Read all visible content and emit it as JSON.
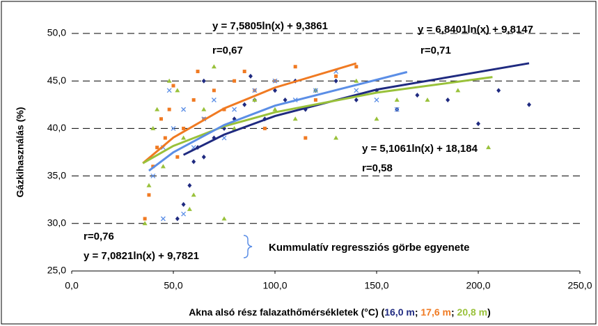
{
  "chart_data": {
    "type": "scatter",
    "ylabel": "Gázkihasználás (%)",
    "xlabel_parts": [
      "Akna alsó rész falazathőmérsékletek (°C) (",
      "; ",
      "; ",
      ")"
    ],
    "xlim": [
      0,
      250
    ],
    "xticks": [
      {
        "value": 0,
        "label": "0,0"
      },
      {
        "value": 50,
        "label": "50,0"
      },
      {
        "value": 100,
        "label": "100,0"
      },
      {
        "value": 150,
        "label": "150,0"
      },
      {
        "value": 200,
        "label": "200,0"
      },
      {
        "value": 250,
        "label": "250,0"
      }
    ],
    "ylim": [
      25,
      50
    ],
    "yticks": [
      {
        "value": 25,
        "label": "25,0"
      },
      {
        "value": 30,
        "label": "30,0"
      },
      {
        "value": 35,
        "label": "35,0"
      },
      {
        "value": 40,
        "label": "40,0"
      },
      {
        "value": 45,
        "label": "45,0"
      },
      {
        "value": 50,
        "label": "50,0"
      }
    ],
    "grid": true,
    "series": [
      {
        "name": "16,0 m",
        "color": "#1f2a80",
        "marker": "diamond",
        "x": [
          52,
          55,
          58,
          60,
          62,
          65,
          70,
          75,
          80,
          85,
          90,
          95,
          100,
          105,
          110,
          115,
          120,
          130,
          140,
          150,
          160,
          170,
          185,
          200,
          210,
          225,
          65,
          88
        ],
        "values": [
          30.5,
          32,
          34,
          36.5,
          38,
          37,
          39,
          40,
          41,
          42.5,
          43,
          41,
          44,
          43,
          45,
          42,
          44,
          45,
          43,
          44,
          42,
          43.5,
          43,
          40.5,
          44,
          42.5,
          45,
          45.5
        ]
      },
      {
        "name": "17,6 m",
        "color": "#f07a22",
        "marker": "square",
        "x": [
          36,
          38,
          40,
          42,
          44,
          46,
          48,
          50,
          52,
          55,
          60,
          62,
          65,
          70,
          75,
          80,
          85,
          90,
          95,
          100,
          110,
          115,
          120,
          130,
          140
        ],
        "values": [
          30.5,
          33,
          36,
          38,
          41,
          39,
          42,
          44.5,
          37,
          40,
          43,
          46,
          41,
          44,
          42,
          45,
          46,
          44,
          40,
          45,
          46.5,
          39,
          43,
          45.5,
          46.5
        ]
      },
      {
        "name": "20,8 m",
        "color": "#99c13a",
        "marker": "triangle",
        "x": [
          36,
          38,
          40,
          42,
          45,
          48,
          52,
          55,
          58,
          60,
          65,
          70,
          75,
          80,
          90,
          100,
          110,
          120,
          130,
          140,
          150,
          160,
          175,
          190,
          205
        ],
        "values": [
          30,
          34,
          40,
          42,
          36,
          45,
          44,
          39,
          31.5,
          33,
          42,
          46.5,
          30.5,
          40,
          43,
          42,
          41,
          44,
          39,
          45,
          41,
          43,
          43,
          44,
          38
        ]
      },
      {
        "color": "#5b8ee6",
        "marker": "cross",
        "x": [
          40,
          45,
          50,
          55,
          60,
          65,
          70,
          75,
          80,
          90,
          100,
          110,
          120,
          130,
          140,
          150,
          160,
          45,
          55,
          48
        ],
        "values": [
          35,
          38,
          40,
          42,
          38,
          41,
          43,
          39,
          42,
          44,
          45,
          43,
          44,
          46,
          44,
          43,
          42,
          30.5,
          31,
          44
        ]
      }
    ],
    "trendlines": [
      {
        "color": "#1f2a80",
        "x": [
          55,
          75,
          100,
          150,
          225
        ],
        "values": [
          37.22,
          39.35,
          41.31,
          44.09,
          46.86
        ]
      },
      {
        "color": "#f07a22",
        "x": [
          35,
          50,
          75,
          100,
          140
        ],
        "values": [
          36.34,
          39.04,
          42.11,
          44.3,
          46.85
        ]
      },
      {
        "color": "#99c13a",
        "x": [
          35,
          50,
          75,
          100,
          150,
          207
        ],
        "values": [
          36.34,
          38.16,
          40.23,
          41.7,
          43.77,
          45.41
        ]
      },
      {
        "color": "#5b8ee6",
        "x": [
          38,
          50,
          75,
          100,
          165
        ],
        "values": [
          35.55,
          37.49,
          40.36,
          42.4,
          45.94
        ]
      }
    ],
    "annotations": [
      {
        "text": "y = 7,5805ln(x) + 9,3861",
        "color": "#f07a22"
      },
      {
        "text": "r=0,67",
        "color": "#f07a22"
      },
      {
        "text": "y = 6,8401ln(x) + 9,8147",
        "color": "#1f2a80"
      },
      {
        "text": "r=0,71",
        "color": "#1f4e79"
      },
      {
        "text": "y = 5,1061ln(x) + 18,184",
        "color": "#99c13a"
      },
      {
        "text": "r=0,58",
        "color": "#99c13a"
      },
      {
        "text": "r=0,76",
        "color": "#5b8ee6"
      },
      {
        "text": "y = 7,0821ln(x) + 9,7821",
        "color": "#5b8ee6"
      },
      {
        "text": "Kummulatív regressziós görbe egyenete",
        "color": "#5b8ee6"
      }
    ]
  }
}
